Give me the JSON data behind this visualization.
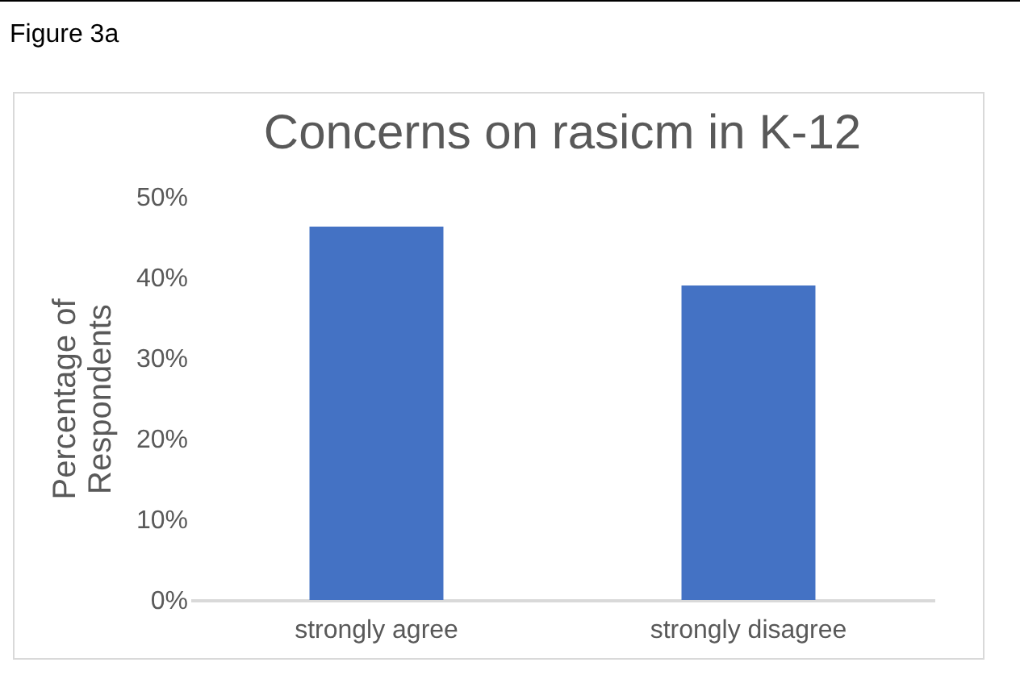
{
  "chart_data": {
    "type": "bar",
    "title": "Concerns on rasicm in K-12",
    "ylabel": "Percentage of Respondents",
    "annotations": [
      "Figure 3a"
    ],
    "categories": [
      "strongly agree",
      "strongly disagree"
    ],
    "values": [
      46.3,
      39
    ],
    "color": "#4472c4",
    "ylim": [
      0,
      50
    ],
    "yticks": [
      {
        "value": 0,
        "label": "0%"
      },
      {
        "value": 10,
        "label": "10%"
      },
      {
        "value": 20,
        "label": "20%"
      },
      {
        "value": 30,
        "label": "30%"
      },
      {
        "value": 40,
        "label": "40%"
      },
      {
        "value": 50,
        "label": "50%"
      }
    ],
    "grid": false
  }
}
